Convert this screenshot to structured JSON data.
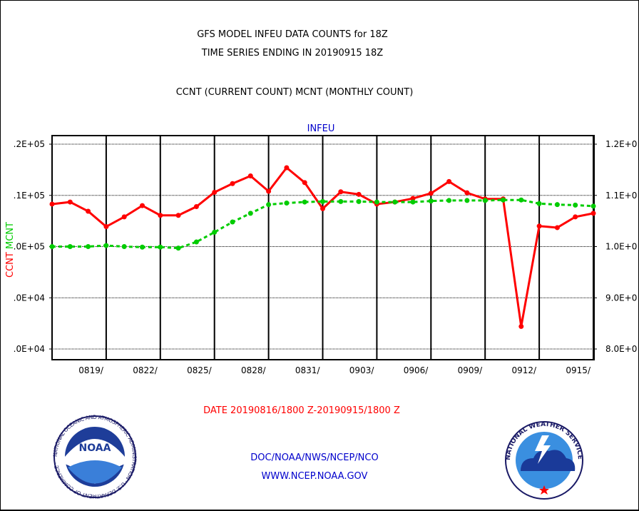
{
  "header": {
    "title_line1": "GFS MODEL INFEU DATA COUNTS for 18Z",
    "title_line2": "TIME SERIES ENDING IN 20190915 18Z",
    "subtitle": "CCNT (CURRENT COUNT) MCNT (MONTHLY COUNT)"
  },
  "footer": {
    "date_range": "DATE 20190816/1800 Z-20190915/1800 Z",
    "org": "DOC/NOAA/NWS/NCEP/NCO",
    "url": "WWW.NCEP.NOAA.GOV"
  },
  "logos": {
    "noaa_text": "NOAA",
    "noaa_ring": "NATIONAL OCEANIC AND ATMOSPHERIC ADMINISTRATION · U.S. DEPARTMENT OF COMMERCE ·",
    "nws_ring": "NATIONAL WEATHER SERVICE"
  },
  "colors": {
    "ccnt": "#ff0000",
    "mcnt": "#00cc00",
    "label_blue": "#0000cc"
  },
  "chart_data": {
    "type": "line",
    "title": "INFEU",
    "ylabel_left": "CCNT",
    "ylabel_right": "MCNT",
    "ylim": [
      80000,
      120000
    ],
    "left_ticks": [
      ".0E+04",
      ".0E+04",
      ".0E+05",
      ".1E+05",
      ".2E+05"
    ],
    "right_ticks": [
      "8.0E+0",
      "9.0E+0",
      "1.0E+0",
      "1.1E+0",
      "1.2E+0"
    ],
    "tick_values": [
      80000,
      90000,
      100000,
      110000,
      120000
    ],
    "x_start_day": 16,
    "x_days": 30,
    "x_tick_labels": [
      "0819/",
      "0822/",
      "0825/",
      "0828/",
      "0831/",
      "0903/",
      "0906/",
      "0909/",
      "0912/",
      "0915/"
    ],
    "x_tick_days": [
      3,
      6,
      9,
      12,
      15,
      18,
      21,
      24,
      27,
      30
    ],
    "series": [
      {
        "name": "CCNT",
        "color": "#ff0000",
        "values": [
          108300,
          108700,
          106900,
          103900,
          105800,
          108000,
          106100,
          106100,
          107800,
          110600,
          112300,
          113800,
          110800,
          115400,
          112500,
          107400,
          110700,
          110200,
          108300,
          108700,
          109400,
          110400,
          112700,
          110500,
          109300,
          109300,
          84400,
          104000,
          103700,
          105800,
          106500
        ]
      },
      {
        "name": "MCNT",
        "color": "#00cc00",
        "values": [
          100000,
          100000,
          100000,
          100200,
          100000,
          99900,
          99900,
          99700,
          100900,
          102800,
          104800,
          106500,
          108200,
          108500,
          108700,
          108800,
          108800,
          108800,
          108700,
          108700,
          108700,
          108900,
          109000,
          109000,
          109000,
          109100,
          109100,
          108400,
          108200,
          108100,
          107900
        ]
      }
    ]
  }
}
